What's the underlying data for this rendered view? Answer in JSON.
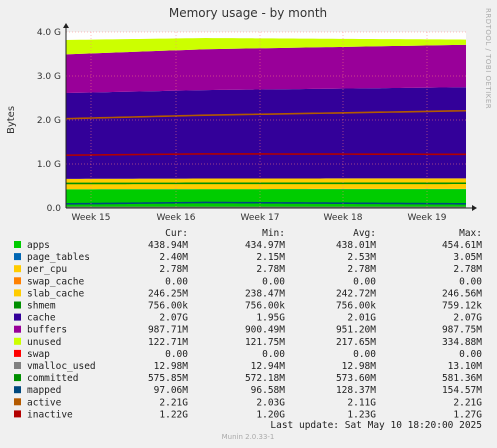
{
  "chart_data": {
    "type": "area",
    "title": "Memory usage - by month",
    "ylabel": "Bytes",
    "side_text": "RRDTOOL / TOBI OETIKER",
    "y_ticks": [
      "0.0",
      "1.0 G",
      "2.0 G",
      "3.0 G",
      "4.0 G"
    ],
    "ylim": [
      0,
      4.0
    ],
    "y_unit": "G",
    "x_ticks": [
      "Week 15",
      "Week 16",
      "Week 17",
      "Week 18",
      "Week 19"
    ],
    "grid": true,
    "stack_order": [
      "apps",
      "page_tables",
      "per_cpu",
      "swap_cache",
      "slab_cache",
      "cache",
      "buffers",
      "unused"
    ],
    "columns": [
      "Cur:",
      "Min:",
      "Avg:",
      "Max:"
    ],
    "legend": [
      {
        "name": "apps",
        "color": "#00cc00",
        "cur": "438.94M",
        "min": "434.97M",
        "avg": "438.01M",
        "max": "454.61M"
      },
      {
        "name": "page_tables",
        "color": "#0066b3",
        "cur": "2.40M",
        "min": "2.15M",
        "avg": "2.53M",
        "max": "3.05M"
      },
      {
        "name": "per_cpu",
        "color": "#ffcc00",
        "cur": "2.78M",
        "min": "2.78M",
        "avg": "2.78M",
        "max": "2.78M"
      },
      {
        "name": "swap_cache",
        "color": "#ff8000",
        "cur": "0.00",
        "min": "0.00",
        "avg": "0.00",
        "max": "0.00"
      },
      {
        "name": "slab_cache",
        "color": "#ffcc00",
        "cur": "246.25M",
        "min": "238.47M",
        "avg": "242.72M",
        "max": "246.56M"
      },
      {
        "name": "shmem",
        "color": "#008f00",
        "cur": "756.00k",
        "min": "756.00k",
        "avg": "756.00k",
        "max": "759.12k"
      },
      {
        "name": "cache",
        "color": "#330099",
        "cur": "2.07G",
        "min": "1.95G",
        "avg": "2.01G",
        "max": "2.07G"
      },
      {
        "name": "buffers",
        "color": "#990099",
        "cur": "987.71M",
        "min": "900.49M",
        "avg": "951.20M",
        "max": "987.75M"
      },
      {
        "name": "unused",
        "color": "#ccff00",
        "cur": "122.71M",
        "min": "121.75M",
        "avg": "217.65M",
        "max": "334.88M"
      },
      {
        "name": "swap",
        "color": "#ff0000",
        "cur": "0.00",
        "min": "0.00",
        "avg": "0.00",
        "max": "0.00"
      },
      {
        "name": "vmalloc_used",
        "color": "#808080",
        "cur": "12.98M",
        "min": "12.94M",
        "avg": "12.98M",
        "max": "13.10M"
      },
      {
        "name": "committed",
        "color": "#008f00",
        "cur": "575.85M",
        "min": "572.18M",
        "avg": "573.60M",
        "max": "581.36M"
      },
      {
        "name": "mapped",
        "color": "#00487d",
        "cur": "97.06M",
        "min": "96.58M",
        "avg": "128.37M",
        "max": "154.57M"
      },
      {
        "name": "active",
        "color": "#b35a00",
        "cur": "2.21G",
        "min": "2.03G",
        "avg": "2.11G",
        "max": "2.21G"
      },
      {
        "name": "inactive",
        "color": "#b30000",
        "cur": "1.22G",
        "min": "1.20G",
        "avg": "1.23G",
        "max": "1.27G"
      }
    ],
    "last_update": "Last update: Sat May 10 18:20:00 2025",
    "footer": "Munin 2.0.33-1"
  }
}
